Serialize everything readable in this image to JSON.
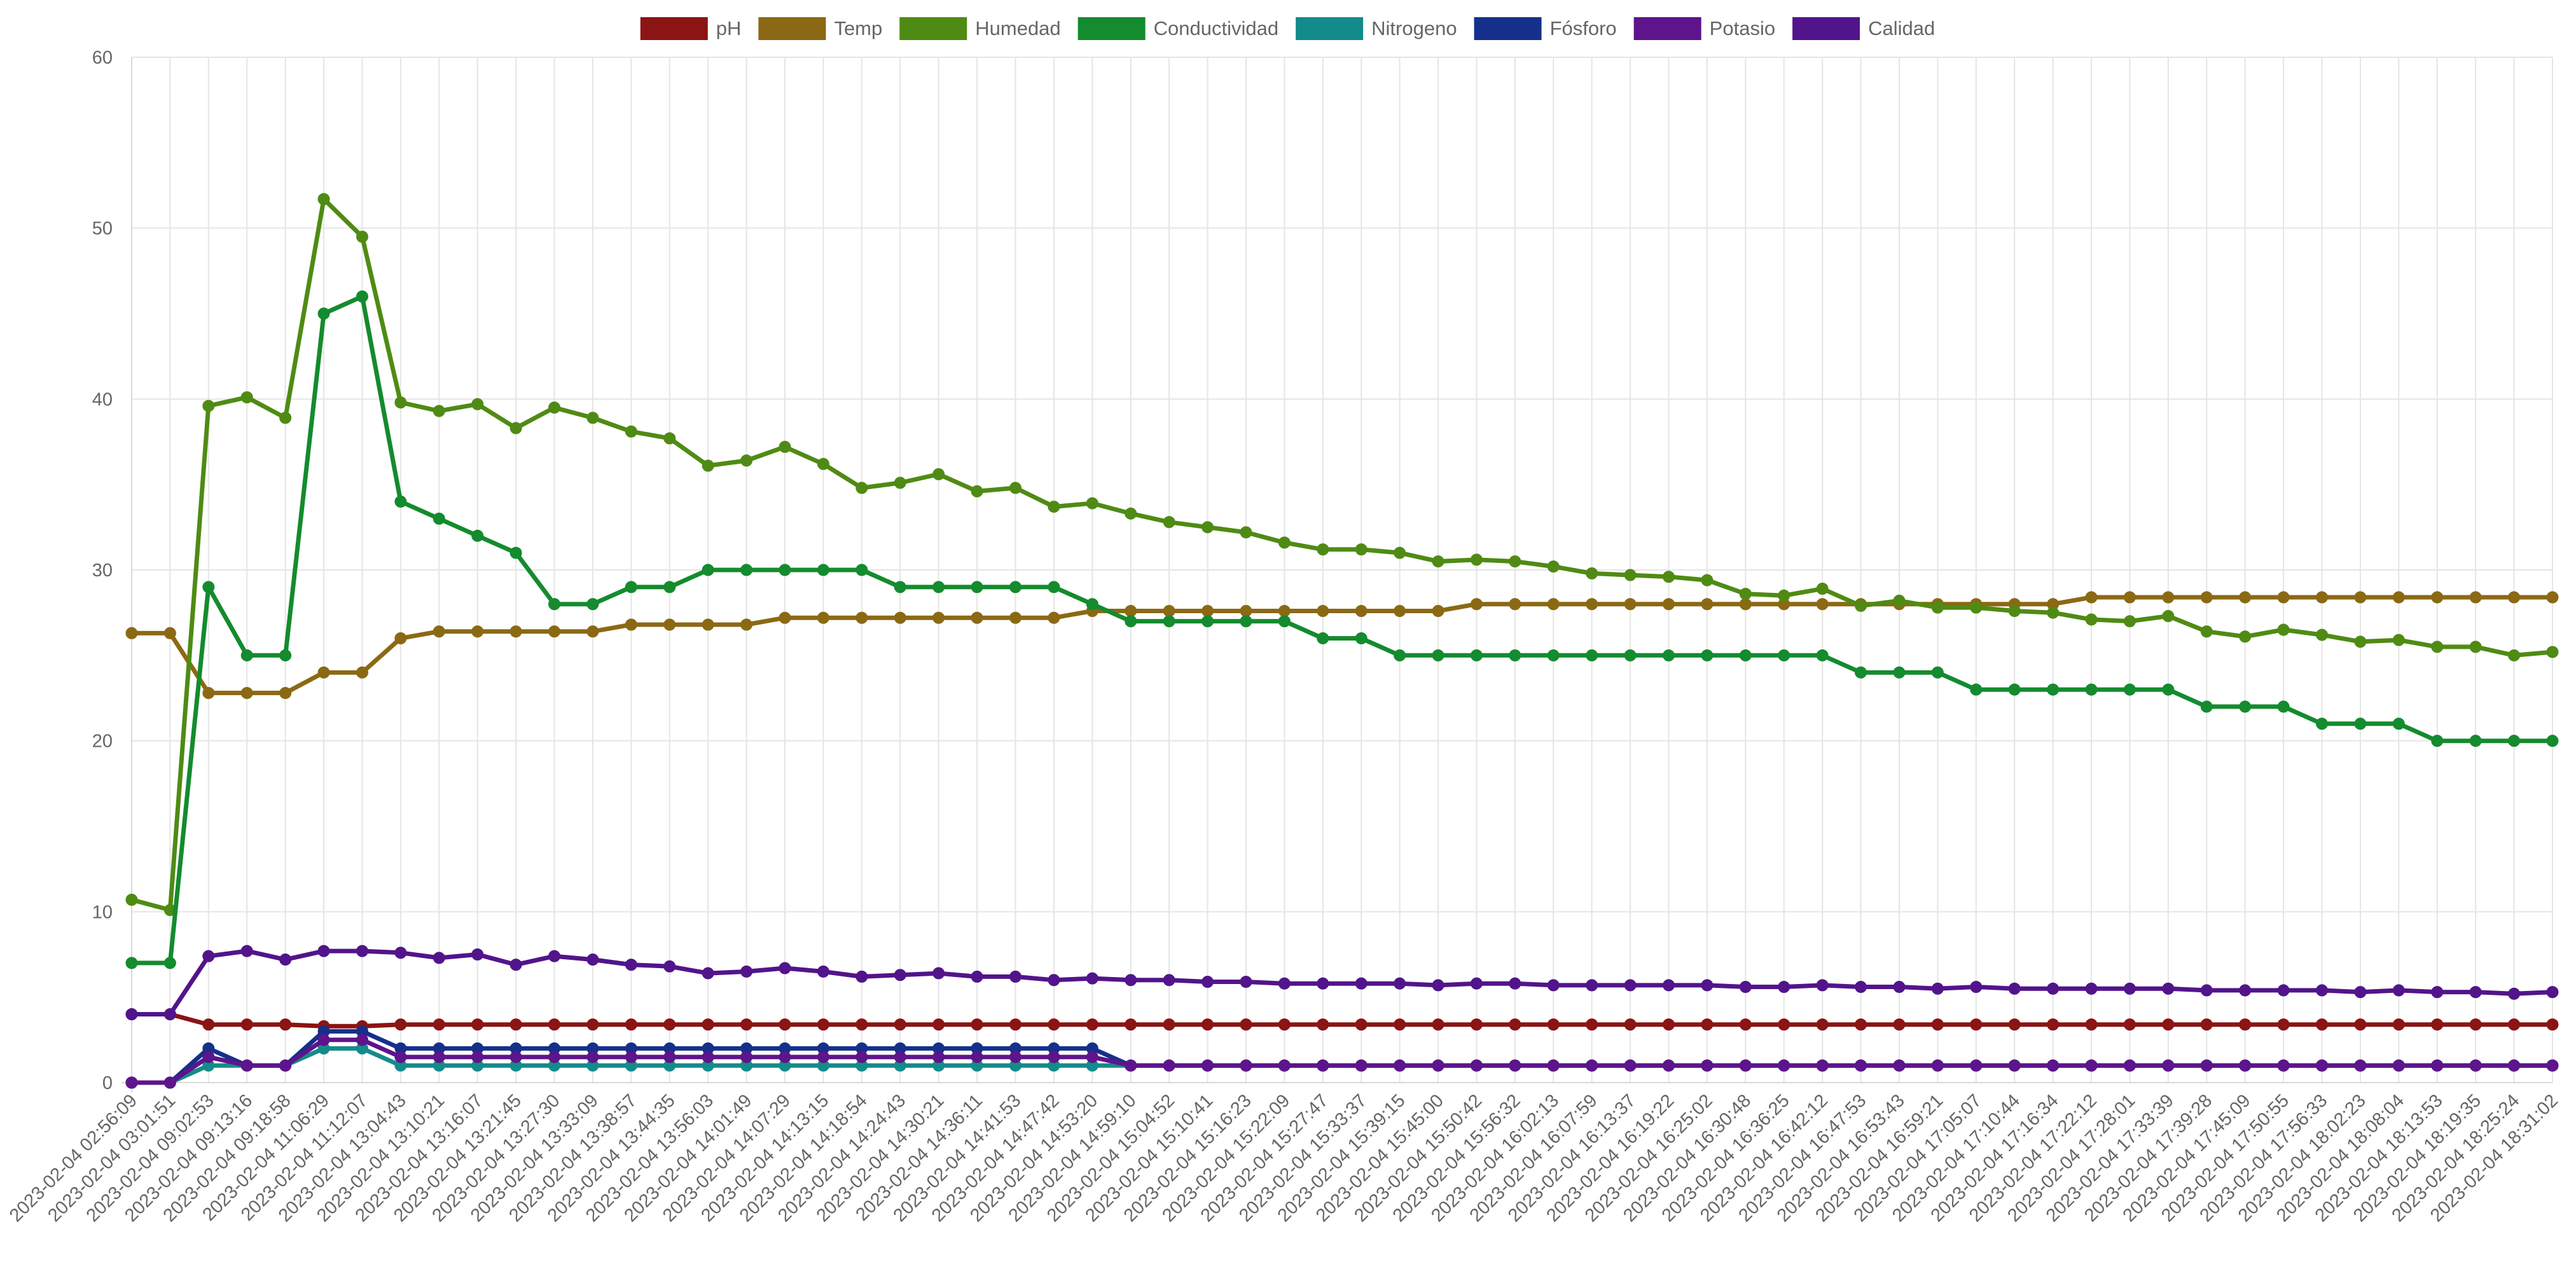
{
  "chart_data": {
    "type": "line",
    "title": "",
    "xlabel": "",
    "ylabel": "",
    "ylim": [
      0,
      60
    ],
    "yticks": [
      0,
      10,
      20,
      30,
      40,
      50,
      60
    ],
    "grid": true,
    "legend_position": "top-center",
    "categories": [
      "2023-02-04 02:56:09",
      "2023-02-04 03:01:51",
      "2023-02-04 09:02:53",
      "2023-02-04 09:13:16",
      "2023-02-04 09:18:58",
      "2023-02-04 11:06:29",
      "2023-02-04 11:12:07",
      "2023-02-04 13:04:43",
      "2023-02-04 13:10:21",
      "2023-02-04 13:16:07",
      "2023-02-04 13:21:45",
      "2023-02-04 13:27:30",
      "2023-02-04 13:33:09",
      "2023-02-04 13:38:57",
      "2023-02-04 13:44:35",
      "2023-02-04 13:56:03",
      "2023-02-04 14:01:49",
      "2023-02-04 14:07:29",
      "2023-02-04 14:13:15",
      "2023-02-04 14:18:54",
      "2023-02-04 14:24:43",
      "2023-02-04 14:30:21",
      "2023-02-04 14:36:11",
      "2023-02-04 14:41:53",
      "2023-02-04 14:47:42",
      "2023-02-04 14:53:20",
      "2023-02-04 14:59:10",
      "2023-02-04 15:04:52",
      "2023-02-04 15:10:41",
      "2023-02-04 15:16:23",
      "2023-02-04 15:22:09",
      "2023-02-04 15:27:47",
      "2023-02-04 15:33:37",
      "2023-02-04 15:39:15",
      "2023-02-04 15:45:00",
      "2023-02-04 15:50:42",
      "2023-02-04 15:56:32",
      "2023-02-04 16:02:13",
      "2023-02-04 16:07:59",
      "2023-02-04 16:13:37",
      "2023-02-04 16:19:22",
      "2023-02-04 16:25:02",
      "2023-02-04 16:30:48",
      "2023-02-04 16:36:25",
      "2023-02-04 16:42:12",
      "2023-02-04 16:47:53",
      "2023-02-04 16:53:43",
      "2023-02-04 16:59:21",
      "2023-02-04 17:05:07",
      "2023-02-04 17:10:44",
      "2023-02-04 17:16:34",
      "2023-02-04 17:22:12",
      "2023-02-04 17:28:01",
      "2023-02-04 17:33:39",
      "2023-02-04 17:39:28",
      "2023-02-04 17:45:09",
      "2023-02-04 17:50:55",
      "2023-02-04 17:56:33",
      "2023-02-04 18:02:23",
      "2023-02-04 18:08:04",
      "2023-02-04 18:13:53",
      "2023-02-04 18:19:35",
      "2023-02-04 18:25:24",
      "2023-02-04 18:31:02"
    ],
    "series": [
      {
        "name": "pH",
        "color": "#8B1414",
        "values": [
          4.0,
          4.0,
          3.4,
          3.4,
          3.4,
          3.3,
          3.3,
          3.4,
          3.4,
          3.4,
          3.4,
          3.4,
          3.4,
          3.4,
          3.4,
          3.4,
          3.4,
          3.4,
          3.4,
          3.4,
          3.4,
          3.4,
          3.4,
          3.4,
          3.4,
          3.4,
          3.4,
          3.4,
          3.4,
          3.4,
          3.4,
          3.4,
          3.4,
          3.4,
          3.4,
          3.4,
          3.4,
          3.4,
          3.4,
          3.4,
          3.4,
          3.4,
          3.4,
          3.4,
          3.4,
          3.4,
          3.4,
          3.4,
          3.4,
          3.4,
          3.4,
          3.4,
          3.4,
          3.4,
          3.4,
          3.4,
          3.4,
          3.4,
          3.4,
          3.4,
          3.4,
          3.4,
          3.4,
          3.4
        ]
      },
      {
        "name": "Temp",
        "color": "#8B6914",
        "values": [
          26.3,
          26.3,
          22.8,
          22.8,
          22.8,
          24.0,
          24.0,
          26.0,
          26.4,
          26.4,
          26.4,
          26.4,
          26.4,
          26.8,
          26.8,
          26.8,
          26.8,
          27.2,
          27.2,
          27.2,
          27.2,
          27.2,
          27.2,
          27.2,
          27.2,
          27.6,
          27.6,
          27.6,
          27.6,
          27.6,
          27.6,
          27.6,
          27.6,
          27.6,
          27.6,
          28.0,
          28.0,
          28.0,
          28.0,
          28.0,
          28.0,
          28.0,
          28.0,
          28.0,
          28.0,
          28.0,
          28.0,
          28.0,
          28.0,
          28.0,
          28.0,
          28.4,
          28.4,
          28.4,
          28.4,
          28.4,
          28.4,
          28.4,
          28.4,
          28.4,
          28.4,
          28.4,
          28.4,
          28.4
        ]
      },
      {
        "name": "Humedad",
        "color": "#4F8B14",
        "values": [
          10.7,
          10.1,
          39.6,
          40.1,
          38.9,
          51.7,
          49.5,
          39.8,
          39.3,
          39.7,
          38.3,
          39.5,
          38.9,
          38.1,
          37.7,
          36.1,
          36.4,
          37.2,
          36.2,
          34.8,
          35.1,
          35.6,
          34.6,
          34.8,
          33.7,
          33.9,
          33.3,
          32.8,
          32.5,
          32.2,
          31.6,
          31.2,
          31.2,
          31.0,
          30.5,
          30.6,
          30.5,
          30.2,
          29.8,
          29.7,
          29.6,
          29.4,
          28.6,
          28.5,
          28.9,
          27.9,
          28.2,
          27.8,
          27.8,
          27.6,
          27.5,
          27.1,
          27.0,
          27.3,
          26.4,
          26.1,
          26.5,
          26.2,
          25.8,
          25.9,
          25.5,
          25.5,
          25.0,
          25.2
        ]
      },
      {
        "name": "Conductividad",
        "color": "#148B2E",
        "values": [
          7,
          7,
          29,
          25,
          25,
          45,
          46,
          34,
          33,
          32,
          31,
          28,
          28,
          29,
          29,
          30,
          30,
          30,
          30,
          30,
          29,
          29,
          29,
          29,
          29,
          28,
          27,
          27,
          27,
          27,
          27,
          26,
          26,
          25,
          25,
          25,
          25,
          25,
          25,
          25,
          25,
          25,
          25,
          25,
          25,
          24,
          24,
          24,
          23,
          23,
          23,
          23,
          23,
          23,
          22,
          22,
          22,
          21,
          21,
          21,
          20,
          20,
          20,
          20
        ]
      },
      {
        "name": "Nitrogeno",
        "color": "#148B8B",
        "values": [
          0,
          0,
          1,
          1,
          1,
          2,
          2,
          1,
          1,
          1,
          1,
          1,
          1,
          1,
          1,
          1,
          1,
          1,
          1,
          1,
          1,
          1,
          1,
          1,
          1,
          1,
          1,
          1,
          1,
          1,
          1,
          1,
          1,
          1,
          1,
          1,
          1,
          1,
          1,
          1,
          1,
          1,
          1,
          1,
          1,
          1,
          1,
          1,
          1,
          1,
          1,
          1,
          1,
          1,
          1,
          1,
          1,
          1,
          1,
          1,
          1,
          1,
          1,
          1
        ]
      },
      {
        "name": "Fósforo",
        "color": "#14308B",
        "values": [
          0,
          0,
          2,
          1,
          1,
          3,
          3,
          2,
          2,
          2,
          2,
          2,
          2,
          2,
          2,
          2,
          2,
          2,
          2,
          2,
          2,
          2,
          2,
          2,
          2,
          2,
          1,
          1,
          1,
          1,
          1,
          1,
          1,
          1,
          1,
          1,
          1,
          1,
          1,
          1,
          1,
          1,
          1,
          1,
          1,
          1,
          1,
          1,
          1,
          1,
          1,
          1,
          1,
          1,
          1,
          1,
          1,
          1,
          1,
          1,
          1,
          1,
          1,
          1
        ]
      },
      {
        "name": "Potasio",
        "color": "#5E148B",
        "values": [
          0,
          0,
          1.5,
          1,
          1,
          2.5,
          2.5,
          1.5,
          1.5,
          1.5,
          1.5,
          1.5,
          1.5,
          1.5,
          1.5,
          1.5,
          1.5,
          1.5,
          1.5,
          1.5,
          1.5,
          1.5,
          1.5,
          1.5,
          1.5,
          1.5,
          1,
          1,
          1,
          1,
          1,
          1,
          1,
          1,
          1,
          1,
          1,
          1,
          1,
          1,
          1,
          1,
          1,
          1,
          1,
          1,
          1,
          1,
          1,
          1,
          1,
          1,
          1,
          1,
          1,
          1,
          1,
          1,
          1,
          1,
          1,
          1,
          1,
          1
        ]
      },
      {
        "name": "Calidad",
        "color": "#52148B",
        "values": [
          4.0,
          4.0,
          7.4,
          7.7,
          7.2,
          7.7,
          7.7,
          7.6,
          7.3,
          7.5,
          6.9,
          7.4,
          7.2,
          6.9,
          6.8,
          6.4,
          6.5,
          6.7,
          6.5,
          6.2,
          6.3,
          6.4,
          6.2,
          6.2,
          6.0,
          6.1,
          6.0,
          6.0,
          5.9,
          5.9,
          5.8,
          5.8,
          5.8,
          5.8,
          5.7,
          5.8,
          5.8,
          5.7,
          5.7,
          5.7,
          5.7,
          5.7,
          5.6,
          5.6,
          5.7,
          5.6,
          5.6,
          5.5,
          5.6,
          5.5,
          5.5,
          5.5,
          5.5,
          5.5,
          5.4,
          5.4,
          5.4,
          5.4,
          5.3,
          5.4,
          5.3,
          5.3,
          5.2,
          5.3
        ]
      }
    ]
  }
}
